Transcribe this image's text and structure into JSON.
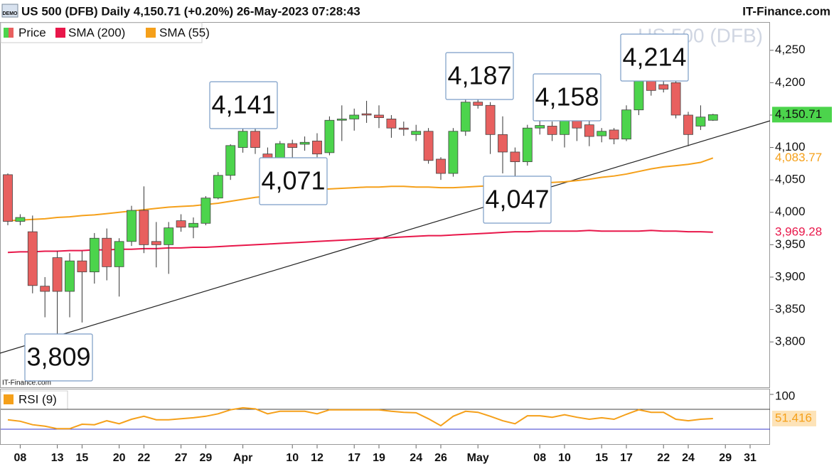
{
  "chart_data": [
    {
      "type": "candlestick",
      "title": "US 500 (DFB) Daily 4,150.71 (+0.20%) 26-May-2023 07:28:43",
      "source": "IT-Finance.com",
      "watermark": "US 500 (DFB)",
      "credit": "IT-Finance.com",
      "badge": "DEMO",
      "name": "Price",
      "up_color": "#4cd44c",
      "down_color": "#e8605f",
      "last_label": "4,150.71",
      "categories": [
        null,
        "08",
        null,
        null,
        "13",
        null,
        "15",
        null,
        null,
        "20",
        null,
        "22",
        null,
        null,
        "27",
        null,
        "29",
        null,
        null,
        "Apr",
        null,
        null,
        null,
        "10",
        null,
        "12",
        null,
        null,
        "17",
        null,
        "19",
        null,
        null,
        "24",
        null,
        "26",
        null,
        null,
        "May",
        null,
        null,
        null,
        null,
        "08",
        null,
        "10",
        null,
        null,
        "15",
        null,
        "17",
        null,
        null,
        "22",
        null,
        "24",
        null,
        null,
        "29",
        null,
        "31"
      ],
      "open": [
        4058,
        3986,
        3970,
        3886,
        3930,
        3878,
        3925,
        3908,
        3960,
        3916,
        3955,
        4003,
        3955,
        3950,
        3987,
        3977,
        3983,
        4022,
        4057,
        4100,
        4125,
        4090,
        4078,
        4106,
        4105,
        4110,
        4092,
        4142,
        4144,
        4152,
        4150,
        4144,
        4130,
        4120,
        4125,
        4082,
        4060,
        4125,
        4170,
        4165,
        4120,
        4093,
        4078,
        4130,
        4133,
        4120,
        4145,
        4135,
        4118,
        4127,
        4113,
        4158,
        4205,
        4197,
        4200,
        4150,
        4133,
        4142,
        null,
        null,
        null
      ],
      "high": [
        4060,
        3997,
        3995,
        3900,
        3940,
        3937,
        3940,
        3968,
        3975,
        3960,
        4010,
        4040,
        3985,
        3985,
        3997,
        3992,
        4025,
        4062,
        4105,
        4141,
        4141,
        4100,
        4110,
        4112,
        4117,
        4122,
        4148,
        4165,
        4160,
        4172,
        4165,
        4150,
        4140,
        4135,
        4130,
        4085,
        4130,
        4175,
        4187,
        4170,
        4148,
        4100,
        4135,
        4148,
        4140,
        4158,
        4150,
        4145,
        4130,
        4130,
        4165,
        4206,
        4214,
        4210,
        4202,
        4155,
        4165,
        4152,
        null,
        null,
        null
      ],
      "low": [
        3980,
        3980,
        3875,
        3838,
        3809,
        3838,
        3830,
        3890,
        3895,
        3870,
        3948,
        3937,
        3915,
        3905,
        3970,
        3960,
        3980,
        4020,
        4050,
        4092,
        4090,
        4068,
        4066,
        4070,
        4095,
        4085,
        4088,
        4110,
        4126,
        4138,
        4130,
        4115,
        4118,
        4110,
        4075,
        4050,
        4055,
        4118,
        4160,
        4090,
        4060,
        4047,
        4072,
        4120,
        4110,
        4100,
        4110,
        4102,
        4108,
        4105,
        4110,
        4150,
        4180,
        4185,
        4145,
        4102,
        4127,
        4141,
        null,
        null,
        null
      ],
      "close": [
        3986,
        3992,
        3887,
        3878,
        3878,
        3925,
        3908,
        3960,
        3916,
        3955,
        4003,
        3950,
        3950,
        3976,
        3977,
        3983,
        4022,
        4057,
        4103,
        4125,
        4100,
        4071,
        4106,
        4100,
        4108,
        4090,
        4142,
        4144,
        4150,
        4150,
        4146,
        4130,
        4128,
        4125,
        4080,
        4060,
        4125,
        4170,
        4165,
        4120,
        4093,
        4078,
        4130,
        4134,
        4120,
        4145,
        4130,
        4117,
        4125,
        4113,
        4158,
        4204,
        4188,
        4190,
        4150,
        4120,
        4147,
        4150.71,
        null,
        null,
        null
      ],
      "series": [
        {
          "name": "SMA (200)",
          "color": "#e8174a",
          "last_label": "3,969.28",
          "values": [
            3938,
            3939,
            3939,
            3940,
            3940,
            3941,
            3941,
            3942,
            3942,
            3943,
            3943,
            3944,
            3944,
            3945,
            3945,
            3946,
            3946,
            3947,
            3948,
            3949,
            3950,
            3951,
            3952,
            3953,
            3954,
            3955,
            3956,
            3957,
            3958,
            3959,
            3960,
            3961,
            3962,
            3963,
            3964,
            3964,
            3965,
            3966,
            3967,
            3968,
            3969,
            3970,
            3970,
            3971,
            3971,
            3971,
            3971,
            3972,
            3971,
            3971,
            3971,
            3971,
            3972,
            3971,
            3971,
            3970,
            3970,
            3969.28,
            null,
            null,
            null
          ]
        },
        {
          "name": "SMA (55)",
          "color": "#f5a01a",
          "last_label": "4,083.77",
          "values": [
            3987,
            3988,
            3989,
            3990,
            3992,
            3993,
            3995,
            3996,
            3998,
            4000,
            4002,
            4004,
            4006,
            4008,
            4009,
            4010,
            4012,
            4014,
            4017,
            4020,
            4023,
            4025,
            4027,
            4030,
            4033,
            4035,
            4036,
            4037,
            4038,
            4039,
            4039,
            4040,
            4040,
            4039,
            4039,
            4038,
            4038,
            4039,
            4040,
            4041,
            4042,
            4043,
            4044,
            4045,
            4046,
            4047,
            4049,
            4051,
            4054,
            4056,
            4059,
            4063,
            4067,
            4070,
            4072,
            4074,
            4077,
            4083.77,
            null,
            null,
            null
          ]
        }
      ],
      "annotations": [
        "3,809",
        "4,141",
        "4,071",
        "4,187",
        "4,047",
        "4,158",
        "4,214"
      ],
      "ylim": [
        3730,
        4292.5
      ],
      "yticks": [
        {
          "value": 3800,
          "label": "3,800"
        },
        {
          "value": 3850,
          "label": "3,850"
        },
        {
          "value": 3900,
          "label": "3,900"
        },
        {
          "value": 3950,
          "label": "3,950"
        },
        {
          "value": 4000,
          "label": "4,000"
        },
        {
          "value": 4050,
          "label": "4,050"
        },
        {
          "value": 4100,
          "label": "4,100"
        },
        {
          "value": 4150,
          "label": "4,150"
        },
        {
          "value": 4200,
          "label": "4,200"
        },
        {
          "value": 4250,
          "label": "4,250"
        }
      ],
      "grid": false
    },
    {
      "type": "line",
      "series": [
        {
          "name": "RSI (9)",
          "color": "#f5a01a",
          "last_label": "51.416",
          "values": [
            49,
            46,
            39,
            36,
            31,
            31,
            40,
            39,
            47,
            41,
            50,
            56,
            49,
            49,
            51,
            53,
            56,
            61,
            69,
            73,
            71,
            61,
            66,
            66,
            66,
            61,
            69,
            69,
            69,
            69,
            69,
            66,
            64,
            63,
            51,
            37,
            56,
            66,
            64,
            56,
            47,
            41,
            57,
            57,
            54,
            59,
            54,
            50,
            53,
            50,
            60,
            69,
            64,
            64,
            50,
            47,
            50,
            51.416,
            null,
            null,
            null
          ]
        }
      ],
      "levels": [
        30,
        70
      ],
      "ylim": [
        0,
        110
      ],
      "yticks": [
        100
      ],
      "grid": false
    }
  ]
}
